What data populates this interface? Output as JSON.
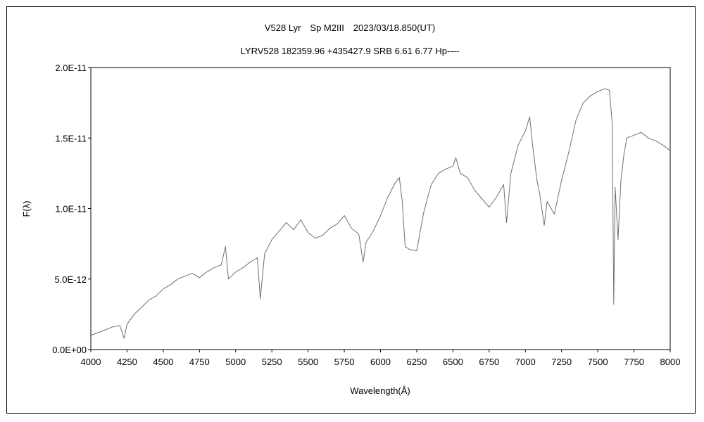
{
  "chart_data": {
    "type": "line",
    "title": "V528 Lyr　Sp M2III　2023/03/18.850(UT)",
    "subtitle": "LYRV528 182359.96 +435427.9 SRB 6.61 6.77 Hp----",
    "xlabel": "Wavelength(Å)",
    "ylabel": "F(λ)",
    "xlim": [
      4000,
      8000
    ],
    "ylim": [
      0,
      2e-11
    ],
    "x_ticks": [
      4000,
      4250,
      4500,
      4750,
      5000,
      5250,
      5500,
      5750,
      6000,
      6250,
      6500,
      6750,
      7000,
      7250,
      7500,
      7750,
      8000
    ],
    "x_tick_labels": [
      "4000",
      "4250",
      "4500",
      "4750",
      "5000",
      "5250",
      "5500",
      "5750",
      "6000",
      "6250",
      "6500",
      "6750",
      "7000",
      "7250",
      "7500",
      "7750",
      "8000"
    ],
    "y_ticks": [
      0,
      5e-12,
      1e-11,
      1.5e-11,
      2e-11
    ],
    "y_tick_labels": [
      "0.0E+00",
      "5.0E-12",
      "1.0E-11",
      "1.5E-11",
      "2.0E-11"
    ],
    "grid": false,
    "legend": "none",
    "line_color": "#707070",
    "series": [
      {
        "x": [
          4000,
          4050,
          4100,
          4150,
          4200,
          4230,
          4250,
          4300,
          4350,
          4400,
          4450,
          4500,
          4550,
          4600,
          4650,
          4700,
          4750,
          4800,
          4850,
          4900,
          4930,
          4950,
          5000,
          5050,
          5100,
          5150,
          5170,
          5200,
          5250,
          5300,
          5350,
          5400,
          5450,
          5500,
          5550,
          5600,
          5650,
          5700,
          5750,
          5800,
          5850,
          5880,
          5900,
          5950,
          6000,
          6050,
          6100,
          6130,
          6150,
          6170,
          6200,
          6250,
          6300,
          6350,
          6400,
          6450,
          6500,
          6520,
          6550,
          6600,
          6650,
          6700,
          6750,
          6800,
          6850,
          6870,
          6900,
          6950,
          7000,
          7030,
          7050,
          7080,
          7100,
          7130,
          7150,
          7200,
          7250,
          7300,
          7350,
          7400,
          7450,
          7500,
          7550,
          7580,
          7600,
          7610,
          7620,
          7640,
          7660,
          7680,
          7700,
          7750,
          7800,
          7850,
          7900,
          7950,
          8000
        ],
        "y": [
          1e-12,
          1.2e-12,
          1.4e-12,
          1.6e-12,
          1.7e-12,
          8e-13,
          1.8e-12,
          2.5e-12,
          3e-12,
          3.5e-12,
          3.8e-12,
          4.3e-12,
          4.6e-12,
          5e-12,
          5.2e-12,
          5.4e-12,
          5.1e-12,
          5.5e-12,
          5.8e-12,
          6e-12,
          7.3e-12,
          5e-12,
          5.5e-12,
          5.8e-12,
          6.2e-12,
          6.5e-12,
          3.6e-12,
          6.8e-12,
          7.8e-12,
          8.4e-12,
          9e-12,
          8.5e-12,
          9.2e-12,
          8.3e-12,
          7.9e-12,
          8.1e-12,
          8.6e-12,
          8.9e-12,
          9.5e-12,
          8.6e-12,
          8.2e-12,
          6.2e-12,
          7.6e-12,
          8.4e-12,
          9.5e-12,
          1.08e-11,
          1.18e-11,
          1.22e-11,
          1.05e-11,
          7.3e-12,
          7.1e-12,
          7e-12,
          9.8e-12,
          1.17e-11,
          1.25e-11,
          1.28e-11,
          1.3e-11,
          1.36e-11,
          1.25e-11,
          1.22e-11,
          1.13e-11,
          1.07e-11,
          1.01e-11,
          1.08e-11,
          1.17e-11,
          9e-12,
          1.25e-11,
          1.45e-11,
          1.55e-11,
          1.65e-11,
          1.45e-11,
          1.2e-11,
          1.1e-11,
          8.8e-12,
          1.05e-11,
          9.6e-12,
          1.2e-11,
          1.4e-11,
          1.63e-11,
          1.75e-11,
          1.8e-11,
          1.83e-11,
          1.85e-11,
          1.84e-11,
          1.6e-11,
          3.2e-12,
          1.15e-11,
          7.8e-12,
          1.2e-11,
          1.38e-11,
          1.5e-11,
          1.52e-11,
          1.54e-11,
          1.5e-11,
          1.48e-11,
          1.45e-11,
          1.41e-11
        ]
      }
    ]
  }
}
